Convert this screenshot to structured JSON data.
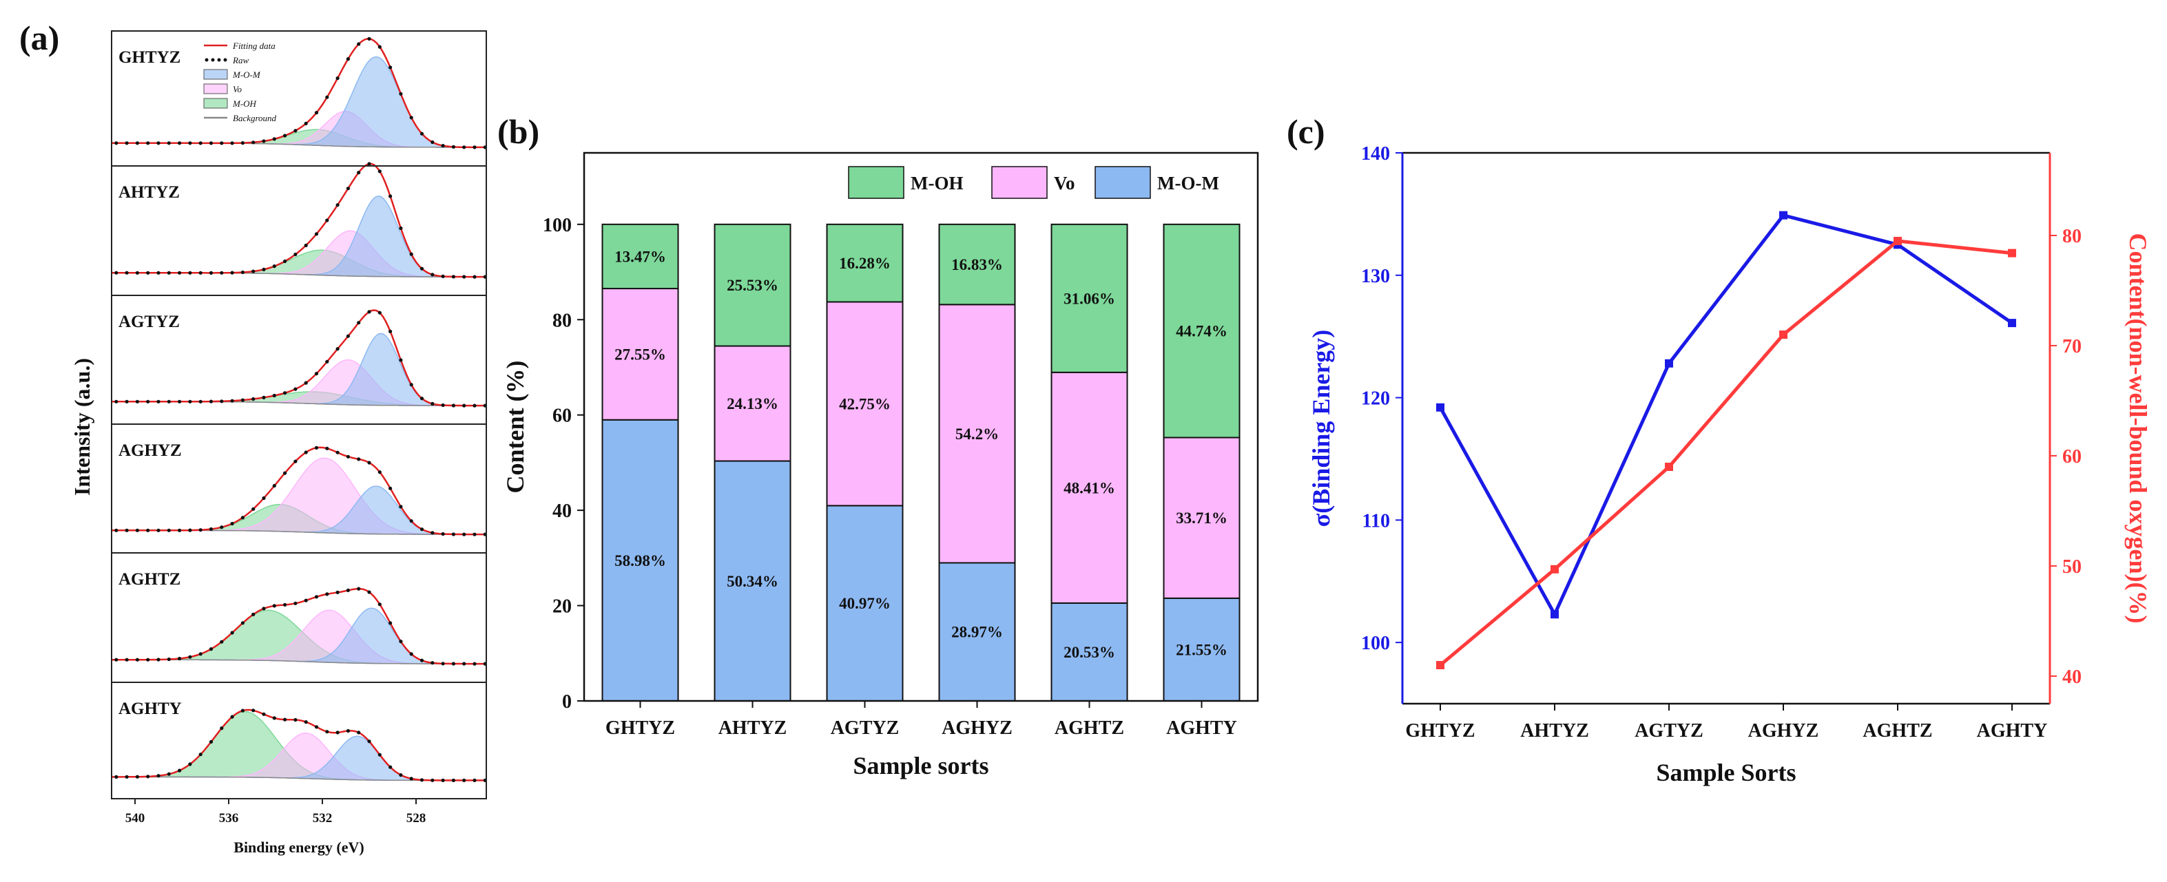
{
  "chart_data": [
    {
      "id": "a",
      "panel_label": "(a)",
      "type": "line",
      "title": "",
      "xlabel": "Binding energy (eV)",
      "ylabel": "Intensity (a.u.)",
      "x_ticks": [
        540,
        536,
        532,
        528
      ],
      "xlim": [
        541,
        525
      ],
      "legend": [
        "Fitting data",
        "Raw",
        "M-O-M",
        "Vo",
        "M-OH",
        "Background"
      ],
      "panels": [
        {
          "name": "GHTYZ",
          "peaks": [
            {
              "comp": "M-O-M",
              "center": 529.7,
              "height": 0.85,
              "width": 1.0
            },
            {
              "comp": "Vo",
              "center": 531.0,
              "height": 0.33,
              "width": 0.9
            },
            {
              "comp": "M-OH",
              "center": 532.2,
              "height": 0.15,
              "width": 1.2
            }
          ]
        },
        {
          "name": "AHTYZ",
          "peaks": [
            {
              "comp": "M-O-M",
              "center": 529.6,
              "height": 0.8,
              "width": 0.85
            },
            {
              "comp": "Vo",
              "center": 530.8,
              "height": 0.45,
              "width": 1.0
            },
            {
              "comp": "M-OH",
              "center": 532.0,
              "height": 0.25,
              "width": 1.3
            }
          ]
        },
        {
          "name": "AGTYZ",
          "peaks": [
            {
              "comp": "M-O-M",
              "center": 529.5,
              "height": 0.72,
              "width": 0.8
            },
            {
              "comp": "Vo",
              "center": 530.9,
              "height": 0.45,
              "width": 1.0
            },
            {
              "comp": "M-OH",
              "center": 532.3,
              "height": 0.12,
              "width": 1.6
            }
          ]
        },
        {
          "name": "AGHYZ",
          "peaks": [
            {
              "comp": "M-O-M",
              "center": 529.7,
              "height": 0.48,
              "width": 0.9
            },
            {
              "comp": "Vo",
              "center": 531.9,
              "height": 0.75,
              "width": 1.3
            },
            {
              "comp": "M-OH",
              "center": 533.8,
              "height": 0.27,
              "width": 1.2
            }
          ]
        },
        {
          "name": "AGHTZ",
          "peaks": [
            {
              "comp": "M-O-M",
              "center": 529.9,
              "height": 0.55,
              "width": 0.9
            },
            {
              "comp": "Vo",
              "center": 531.7,
              "height": 0.52,
              "width": 1.1
            },
            {
              "comp": "M-OH",
              "center": 534.3,
              "height": 0.5,
              "width": 1.4
            }
          ]
        },
        {
          "name": "AGHTY",
          "peaks": [
            {
              "comp": "M-O-M",
              "center": 530.5,
              "height": 0.5,
              "width": 0.9
            },
            {
              "comp": "Vo",
              "center": 532.7,
              "height": 0.52,
              "width": 1.0
            },
            {
              "comp": "M-OH",
              "center": 535.3,
              "height": 0.75,
              "width": 1.3
            }
          ]
        }
      ]
    },
    {
      "id": "b",
      "panel_label": "(b)",
      "type": "bar",
      "stacked": true,
      "title": "",
      "xlabel": "Sample sorts",
      "ylabel": "Content (%)",
      "ylim": [
        0,
        115
      ],
      "y_ticks": [
        0,
        20,
        40,
        60,
        80,
        100
      ],
      "categories": [
        "GHTYZ",
        "AHTYZ",
        "AGTYZ",
        "AGHYZ",
        "AGHTZ",
        "AGHTY"
      ],
      "legend_order": [
        "M-OH",
        "Vo",
        "M-O-M"
      ],
      "series": [
        {
          "name": "M-O-M",
          "values": [
            58.98,
            50.34,
            40.97,
            28.97,
            20.53,
            21.55
          ],
          "labels": [
            "58.98%",
            "50.34%",
            "40.97%",
            "28.97%",
            "20.53%",
            "21.55%"
          ]
        },
        {
          "name": "Vo",
          "values": [
            27.55,
            24.13,
            42.75,
            54.2,
            48.41,
            33.71
          ],
          "labels": [
            "27.55%",
            "24.13%",
            "42.75%",
            "54.2%",
            "48.41%",
            "33.71%"
          ]
        },
        {
          "name": "M-OH",
          "values": [
            13.47,
            25.53,
            16.28,
            16.83,
            31.06,
            44.74
          ],
          "labels": [
            "13.47%",
            "25.53%",
            "16.28%",
            "16.83%",
            "31.06%",
            "44.74%"
          ]
        }
      ]
    },
    {
      "id": "c",
      "panel_label": "(c)",
      "type": "line",
      "title": "",
      "xlabel": "Sample Sorts",
      "categories": [
        "GHTYZ",
        "AHTYZ",
        "AGTYZ",
        "AGHYZ",
        "AGHTZ",
        "AGHTY"
      ],
      "left_axis": {
        "label": "σ(Binding Energy)",
        "ylim": [
          95,
          140
        ],
        "ticks": [
          100,
          110,
          120,
          130,
          140
        ]
      },
      "right_axis": {
        "label": "Content(non-well-bound oxygen)(%)",
        "ylim": [
          37.5,
          87.5
        ],
        "ticks": [
          40,
          50,
          60,
          70,
          80
        ]
      },
      "series": [
        {
          "name": "σ(Binding Energy)",
          "axis": "left",
          "values": [
            119.2,
            102.3,
            122.8,
            134.9,
            132.5,
            126.1
          ]
        },
        {
          "name": "Content(non-well-bound oxygen)",
          "axis": "right",
          "values": [
            41.0,
            49.7,
            59.0,
            71.0,
            79.5,
            78.4
          ]
        }
      ]
    }
  ],
  "colors": {
    "M-O-M": "#8db9f2",
    "Vo": "#fdb7fc",
    "M-OH": "#7dd899",
    "sigma_line": "#1a1ae6",
    "content_line": "#ff3b3b",
    "fit_line": "#e02020"
  }
}
